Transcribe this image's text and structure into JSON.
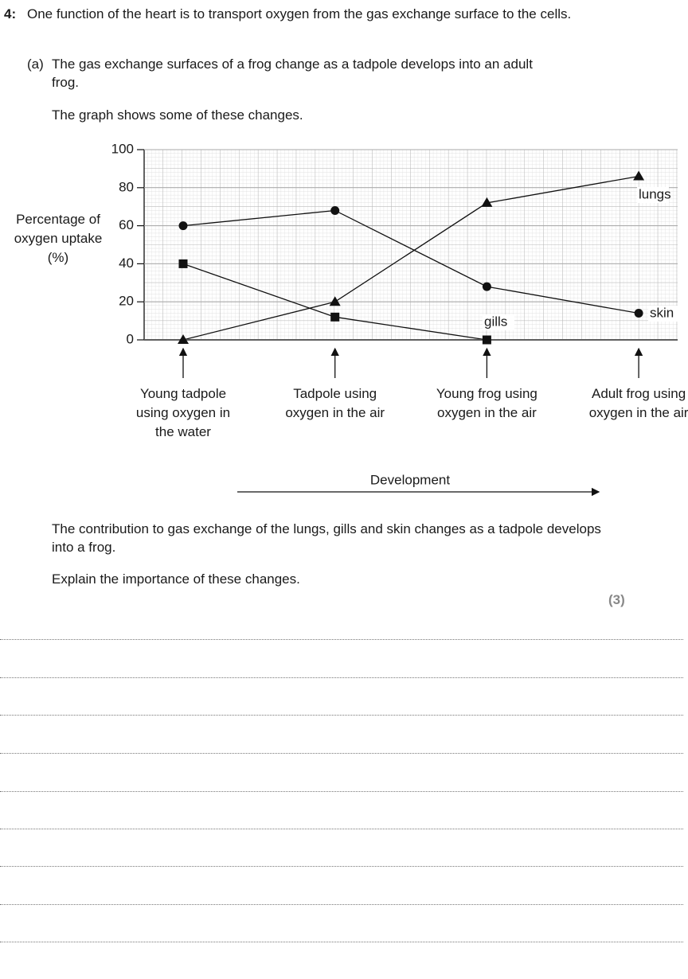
{
  "question": {
    "number": "4:",
    "stem": "One function of the heart is to transport oxygen from the gas exchange surface to the cells.",
    "part_label": "(a)",
    "part_text": "The gas exchange surfaces of a frog change as a tadpole develops into an adult frog.",
    "graph_intro": "The graph shows some of these changes.",
    "follow_up": "The contribution to gas exchange of the lungs, gills and skin changes as a tadpole develops into a frog.",
    "instruction": "Explain the importance of these changes.",
    "marks": "(3)"
  },
  "chart_data": {
    "type": "line",
    "y_label": [
      "Percentage of",
      "oxygen uptake",
      "(%)"
    ],
    "x_label": "Development",
    "categories": [
      "Young tadpole using oxygen in the water",
      "Tadpole using oxygen in the air",
      "Young frog using oxygen in the air",
      "Adult frog using oxygen in the air"
    ],
    "series": [
      {
        "name": "skin",
        "color": "#111111",
        "marker": "circle",
        "values": [
          60,
          68,
          28,
          14
        ]
      },
      {
        "name": "gills",
        "color": "#111111",
        "marker": "square",
        "values": [
          40,
          12,
          0,
          null
        ]
      },
      {
        "name": "lungs",
        "color": "#111111",
        "marker": "triangle",
        "values": [
          0,
          20,
          72,
          86
        ]
      }
    ],
    "ylim": [
      0,
      100
    ],
    "yticks": [
      0,
      20,
      40,
      60,
      80,
      100
    ],
    "grid": true
  }
}
